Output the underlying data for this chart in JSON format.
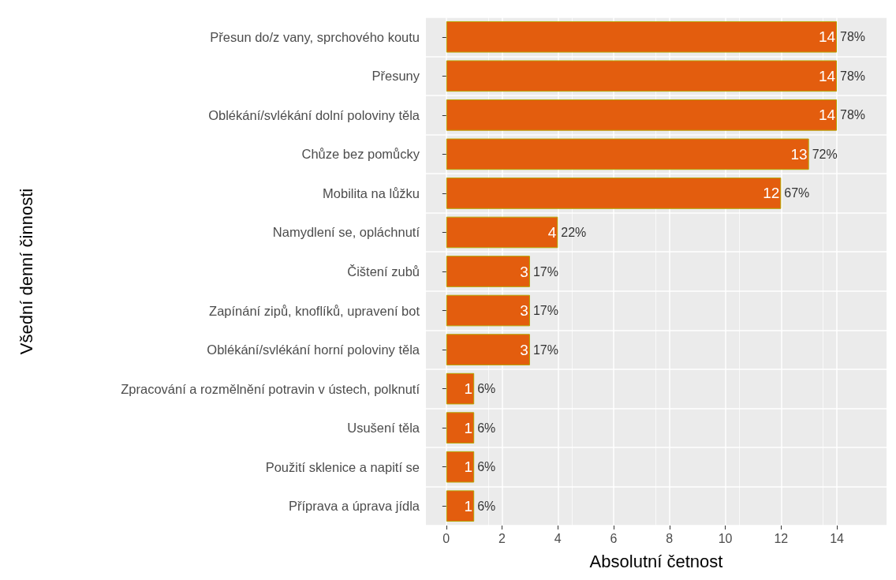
{
  "chart_data": {
    "type": "bar",
    "orientation": "horizontal",
    "xlabel": "Absolutní četnost",
    "ylabel": "Všední denní činnosti",
    "categories": [
      "Přesun do/z vany, sprchového koutu",
      "Přesuny",
      "Oblékání/svlékání dolní poloviny těla",
      "Chůze bez pomůcky",
      "Mobilita na lůžku",
      "Namydlení se, opláchnutí",
      "Čištení zubů",
      "Zapínání zipů, knoflíků, upravení bot",
      "Oblékání/svlékání horní poloviny těla",
      "Zpracování a rozmělnění potravin v ústech, polknutí",
      "Usušení těla",
      "Použití sklenice a napití se",
      "Příprava a úprava jídla"
    ],
    "values": [
      14,
      14,
      14,
      13,
      12,
      4,
      3,
      3,
      3,
      1,
      1,
      1,
      1
    ],
    "data_labels": true,
    "annotations": [
      {
        "text": "78%",
        "x": 14,
        "y": "Přesun do/z vany, sprchového koutu"
      },
      {
        "text": "78%",
        "x": 14,
        "y": "Přesuny"
      },
      {
        "text": "78%",
        "x": 14,
        "y": "Oblékání/svlékání dolní poloviny těla"
      },
      {
        "text": "72%",
        "x": 13,
        "y": "Chůze bez pomůcky"
      },
      {
        "text": "67%",
        "x": 12,
        "y": "Mobilita na lůžku"
      },
      {
        "text": "22%",
        "x": 4,
        "y": "Namydlení se, opláchnutí"
      },
      {
        "text": "17%",
        "x": 3,
        "y": "Čištení zubů"
      },
      {
        "text": "17%",
        "x": 3,
        "y": "Zapínání zipů, knoflíků, upravení bot"
      },
      {
        "text": "17%",
        "x": 3,
        "y": "Oblékání/svlékání horní poloviny těla"
      },
      {
        "text": "6%",
        "x": 1,
        "y": "Zpracování a rozmělnění potravin v ústech, polknutí"
      },
      {
        "text": "6%",
        "x": 1,
        "y": "Usušení těla"
      },
      {
        "text": "6%",
        "x": 1,
        "y": "Použití sklenice a napití se"
      },
      {
        "text": "6%",
        "x": 1,
        "y": "Příprava a úprava jídla"
      }
    ],
    "color": "#e35d0e",
    "xlim": [
      -0.73,
      15.78
    ],
    "xticks": [
      0,
      2,
      4,
      6,
      8,
      10,
      12,
      14
    ],
    "grid": true
  }
}
